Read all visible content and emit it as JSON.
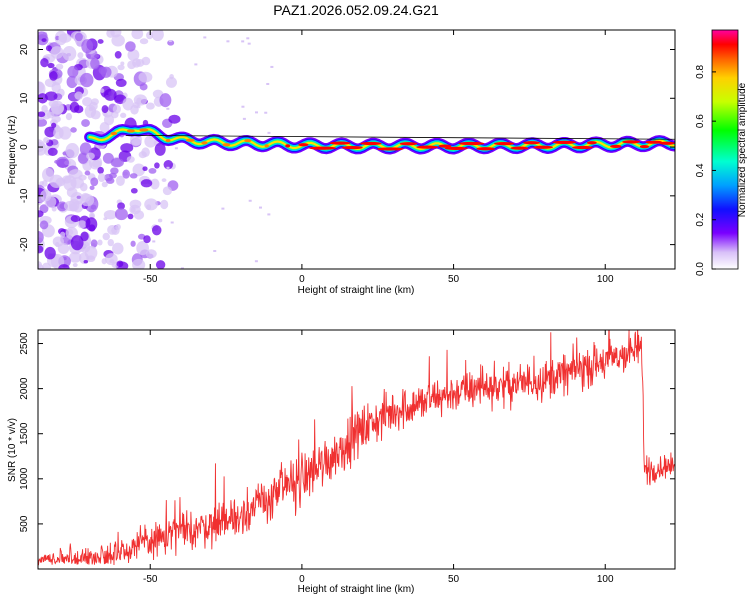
{
  "title": "PAZ1.2026.052.09.24.G21",
  "chart_data": [
    {
      "type": "heatmap",
      "xlabel": "Height of straight line (km)",
      "ylabel": "Frequency (Hz)",
      "xlim": [
        -87,
        123
      ],
      "ylim": [
        -25,
        24
      ],
      "xticks": [
        -50,
        0,
        50,
        100
      ],
      "yticks": [
        -20,
        -10,
        0,
        10,
        20
      ],
      "ytick_labels": [
        "-20",
        "-10",
        "0",
        "10",
        "20"
      ],
      "colorbar": {
        "label": "Normalized spectral amplitude",
        "range": [
          0,
          0.97
        ],
        "ticks": [
          0.0,
          0.2,
          0.4,
          0.6,
          0.8
        ],
        "tick_labels": [
          "0.0",
          "0.2",
          "0.4",
          "0.6",
          "0.8"
        ]
      },
      "ridge": {
        "description_points_x": [
          -70,
          -62,
          -55,
          -50,
          -45,
          -40,
          -30,
          -20,
          -10,
          0,
          20,
          50,
          80,
          100,
          123
        ],
        "description_points_y": [
          1.5,
          2.5,
          4.0,
          3.0,
          2.0,
          1.5,
          1.0,
          0.8,
          0.6,
          0.3,
          0.2,
          0.2,
          0.3,
          0.5,
          0.8
        ],
        "noise_region_x": [
          -87,
          -50
        ]
      }
    },
    {
      "type": "line",
      "xlabel": "Height of straight line (km)",
      "ylabel": "SNR (10 * v/v)",
      "xlim": [
        -87,
        123
      ],
      "ylim": [
        0,
        2650
      ],
      "xticks": [
        -50,
        0,
        50,
        100
      ],
      "yticks": [
        500,
        1000,
        1500,
        2000,
        2500
      ],
      "series": [
        {
          "name": "SNR",
          "color": "#f03030",
          "trend_x": [
            -87,
            -70,
            -60,
            -50,
            -40,
            -30,
            -20,
            -10,
            0,
            10,
            20,
            30,
            40,
            50,
            60,
            70,
            80,
            90,
            100,
            112,
            113,
            123
          ],
          "trend_y": [
            100,
            120,
            200,
            300,
            400,
            500,
            600,
            800,
            1000,
            1250,
            1550,
            1750,
            1850,
            1950,
            2000,
            2050,
            2100,
            2200,
            2300,
            2450,
            1100,
            1150
          ],
          "noise_amp_x": [
            -87,
            -50,
            0,
            50,
            110,
            123
          ],
          "noise_amp_y": [
            60,
            160,
            250,
            180,
            200,
            90
          ]
        }
      ]
    }
  ],
  "colors": {
    "line": "#f03030",
    "ridge_line": "#000000"
  }
}
